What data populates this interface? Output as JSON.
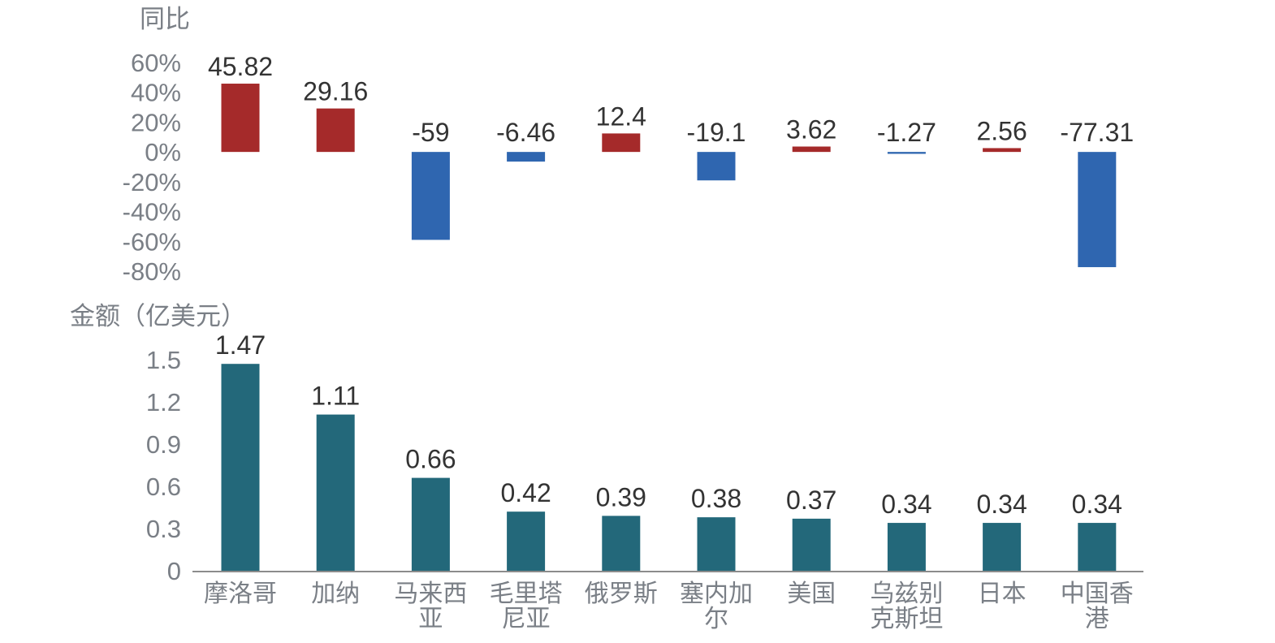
{
  "chart_data": [
    {
      "type": "bar",
      "title": "",
      "ylabel": "同比",
      "xlabel": "",
      "categories": [
        [
          "摩洛哥"
        ],
        [
          "加纳"
        ],
        [
          "马来西",
          "亚"
        ],
        [
          "毛里塔",
          "尼亚"
        ],
        [
          "俄罗斯"
        ],
        [
          "塞内加",
          "尔"
        ],
        [
          "美国"
        ],
        [
          "乌兹别",
          "克斯坦"
        ],
        [
          "日本"
        ],
        [
          "中国香",
          "港"
        ]
      ],
      "values": [
        45.82,
        29.16,
        -59,
        -6.46,
        12.4,
        -19.1,
        3.62,
        -1.27,
        2.56,
        -77.31
      ],
      "value_labels": [
        "45.82",
        "29.16",
        "-59",
        "-6.46",
        "12.4",
        "-19.1",
        "3.62",
        "-1.27",
        "2.56",
        "-77.31"
      ],
      "ylim": [
        -80,
        60
      ],
      "yticks": [
        60,
        40,
        20,
        0,
        -20,
        -40,
        -60,
        -80
      ],
      "ytick_labels": [
        "60%",
        "40%",
        "20%",
        "0%",
        "-20%",
        "-40%",
        "-60%",
        "-80%"
      ],
      "grid": false,
      "colors": {
        "positive": "#a52a2a",
        "negative": "#2f66b0"
      }
    },
    {
      "type": "bar",
      "title": "",
      "ylabel": "金额（亿美元）",
      "xlabel": "",
      "categories": [
        [
          "摩洛哥"
        ],
        [
          "加纳"
        ],
        [
          "马来西",
          "亚"
        ],
        [
          "毛里塔",
          "尼亚"
        ],
        [
          "俄罗斯"
        ],
        [
          "塞内加",
          "尔"
        ],
        [
          "美国"
        ],
        [
          "乌兹别",
          "克斯坦"
        ],
        [
          "日本"
        ],
        [
          "中国香",
          "港"
        ]
      ],
      "values": [
        1.47,
        1.11,
        0.66,
        0.42,
        0.39,
        0.38,
        0.37,
        0.34,
        0.34,
        0.34
      ],
      "value_labels": [
        "1.47",
        "1.11",
        "0.66",
        "0.42",
        "0.39",
        "0.38",
        "0.37",
        "0.34",
        "0.34",
        "0.34"
      ],
      "ylim": [
        0,
        1.5
      ],
      "yticks": [
        1.5,
        1.2,
        0.9,
        0.6,
        0.3,
        0
      ],
      "ytick_labels": [
        "1.5",
        "1.2",
        "0.9",
        "0.6",
        "0.3",
        "0"
      ],
      "grid": false,
      "colors": {
        "bar": "#23687a",
        "axis": "#8c8c8c"
      }
    }
  ]
}
